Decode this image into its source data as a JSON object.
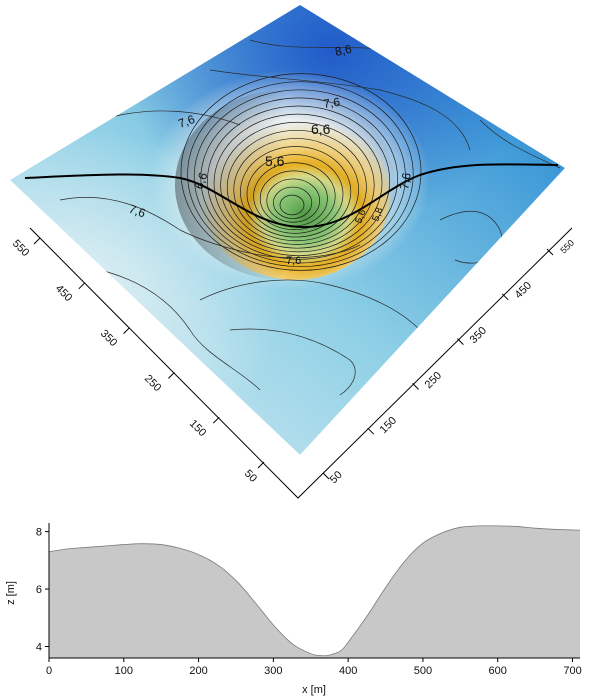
{
  "surface": {
    "contour_labels": [
      "8,6",
      "7,6",
      "6,6",
      "5,6",
      "6,6",
      "7,6",
      "7,6",
      "7,6",
      "5,6",
      "5,8",
      "7,6"
    ],
    "left_axis_ticks": [
      "550",
      "450",
      "350",
      "250",
      "150",
      "50"
    ],
    "right_axis_ticks": [
      "50",
      "150",
      "250",
      "350",
      "450",
      "550"
    ],
    "colors": {
      "high": "#1a5fc4",
      "mid": "#6fc3e0",
      "pale": "#dff0f4",
      "low_yellow": "#e9b020",
      "low_green": "#7fbf6a",
      "trace": "#000000"
    }
  },
  "chart_data": {
    "type": "area",
    "title": "",
    "xlabel": "x [m]",
    "ylabel": "z [m]",
    "xlim": [
      0,
      710
    ],
    "ylim": [
      3.6,
      8.3
    ],
    "xticks": [
      "0",
      "100",
      "200",
      "300",
      "400",
      "500",
      "600",
      "700"
    ],
    "yticks": [
      "4",
      "6",
      "8"
    ],
    "grid": false,
    "fill_color": "#c8c8c8",
    "x": [
      0,
      25,
      50,
      75,
      100,
      125,
      150,
      175,
      200,
      225,
      250,
      275,
      300,
      325,
      350,
      365,
      375,
      390,
      400,
      425,
      450,
      475,
      500,
      525,
      550,
      575,
      600,
      625,
      650,
      675,
      710
    ],
    "y": [
      7.3,
      7.4,
      7.45,
      7.5,
      7.55,
      7.58,
      7.55,
      7.42,
      7.2,
      6.85,
      6.3,
      5.55,
      4.75,
      4.1,
      3.75,
      3.68,
      3.7,
      3.85,
      4.15,
      5.05,
      6.05,
      6.95,
      7.6,
      7.95,
      8.15,
      8.2,
      8.2,
      8.18,
      8.12,
      8.08,
      8.05
    ]
  }
}
